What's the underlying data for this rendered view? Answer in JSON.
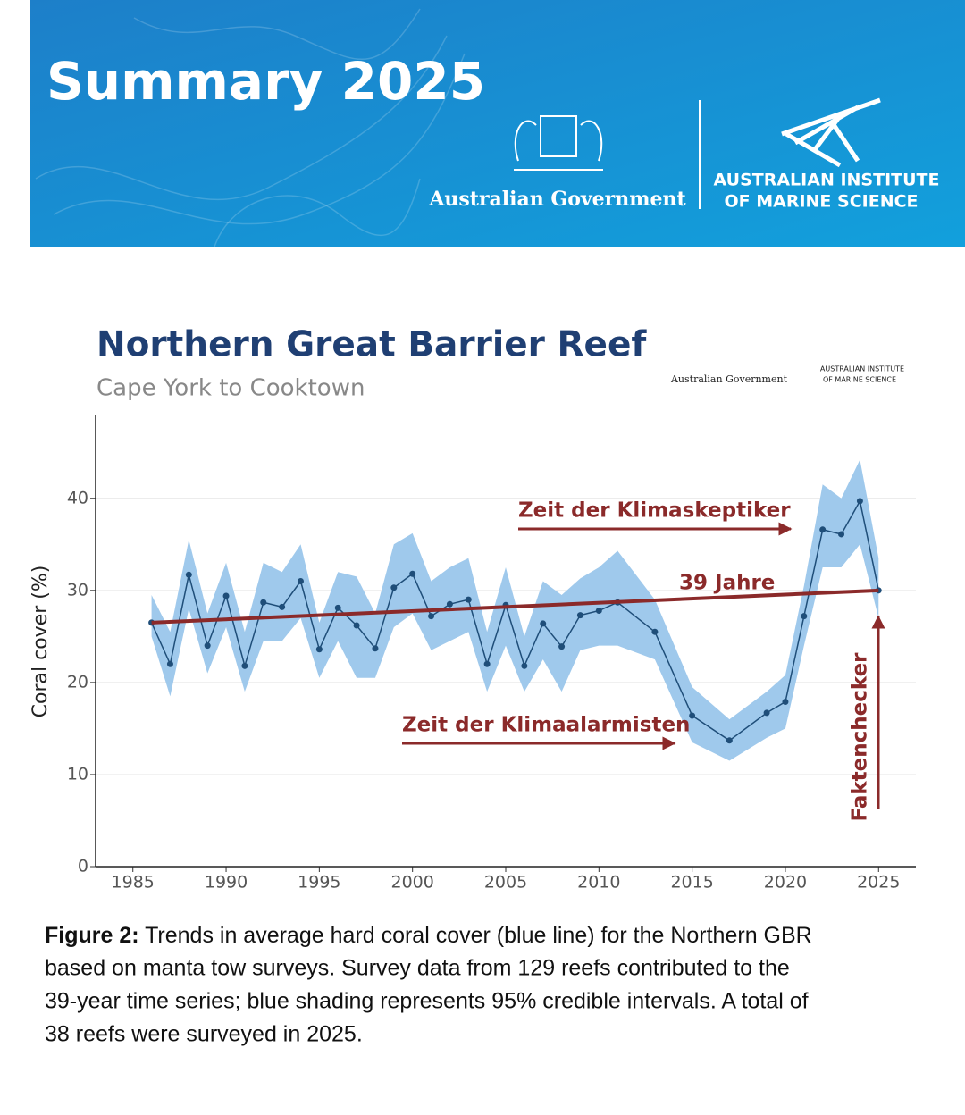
{
  "header": {
    "title": "Summary 2025",
    "gov": "Australian Government",
    "aims_line1": "AUSTRALIAN INSTITUTE",
    "aims_line2": "OF MARINE SCIENCE"
  },
  "chart_data": {
    "type": "line",
    "title": "Northern Great Barrier Reef",
    "subtitle": "Cape York to Cooktown",
    "logos": {
      "gov": "Australian Government",
      "aims_line1": "AUSTRALIAN INSTITUTE",
      "aims_line2": "OF MARINE SCIENCE"
    },
    "ylabel": "Coral cover (%)",
    "x": [
      1986,
      1987,
      1988,
      1989,
      1990,
      1991,
      1992,
      1993,
      1994,
      1995,
      1996,
      1997,
      1998,
      1999,
      2000,
      2001,
      2002,
      2003,
      2004,
      2005,
      2006,
      2007,
      2008,
      2009,
      2010,
      2011,
      2013,
      2015,
      2017,
      2019,
      2020,
      2021,
      2022,
      2023,
      2024,
      2025
    ],
    "values": [
      26.5,
      22,
      31.7,
      24,
      29.4,
      21.8,
      28.7,
      28.2,
      31,
      23.6,
      28.1,
      26.2,
      23.7,
      30.3,
      31.8,
      27.2,
      28.5,
      29,
      22,
      28.4,
      21.8,
      26.4,
      23.9,
      27.3,
      27.8,
      28.7,
      25.5,
      16.4,
      13.7,
      16.7,
      17.9,
      27.2,
      36.6,
      36.1,
      39.7,
      30
    ],
    "lower": [
      25,
      18.5,
      28,
      21,
      26,
      19,
      24.5,
      24.5,
      27,
      20.5,
      24.5,
      20.5,
      20.5,
      26,
      27.5,
      23.5,
      24.5,
      25.5,
      19,
      24,
      19,
      22.5,
      19,
      23.5,
      24,
      24,
      22.5,
      13.5,
      11.5,
      14,
      15,
      24,
      32.5,
      32.5,
      35,
      27
    ],
    "upper": [
      29.5,
      25.5,
      35.5,
      27.5,
      33,
      25.5,
      33,
      32,
      35,
      26.5,
      32,
      31.5,
      27.5,
      35,
      36.2,
      31,
      32.5,
      33.5,
      25.5,
      32.5,
      25,
      31,
      29.5,
      31.3,
      32.5,
      34.3,
      29,
      19.5,
      16,
      19,
      20.8,
      30.5,
      41.5,
      40,
      44.2,
      33.5
    ],
    "color": "#1f4e79",
    "band_color": "#9fc9ec",
    "xlim": [
      1983,
      2027
    ],
    "xticks": [
      1985,
      1990,
      1995,
      2000,
      2005,
      2010,
      2015,
      2020,
      2025
    ],
    "ylim": [
      0,
      49
    ],
    "yticks": [
      0,
      10,
      20,
      30,
      40
    ],
    "grid": true,
    "trend": {
      "x": [
        1986,
        2025
      ],
      "values": [
        26.5,
        30
      ],
      "color": "#8b2a2a"
    },
    "annotations": [
      "Zeit der Klimaskeptiker",
      "39 Jahre",
      "Zeit der Klimaalarmisten",
      "Faktenchecker"
    ]
  },
  "caption": {
    "label": "Figure 2:",
    "lines": [
      " Trends in average hard coral cover (blue line) for the Northern GBR",
      "based on manta tow surveys. Survey data from 129 reefs contributed to the",
      "39-year time series; blue shading represents 95% credible intervals. A total of",
      "38 reefs were surveyed in 2025."
    ]
  }
}
